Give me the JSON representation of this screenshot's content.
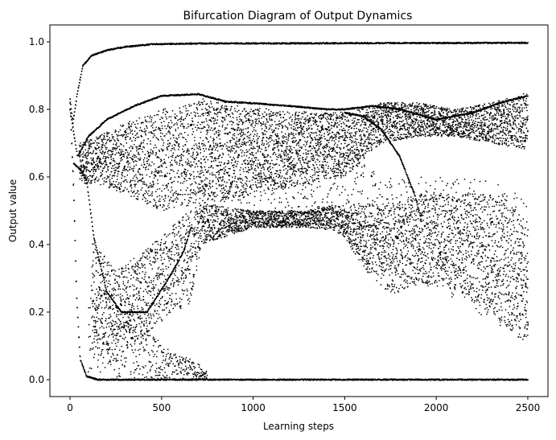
{
  "chart_data": {
    "type": "scatter",
    "title": "Bifurcation Diagram of Output Dynamics",
    "xlabel": "Learning steps",
    "ylabel": "Output value",
    "xlim": [
      -110,
      2610
    ],
    "ylim": [
      -0.05,
      1.05
    ],
    "xticks": [
      0,
      500,
      1000,
      1500,
      2000,
      2500
    ],
    "yticks": [
      0.0,
      0.2,
      0.4,
      0.6,
      0.8,
      1.0
    ],
    "xtick_labels": [
      "0",
      "500",
      "1000",
      "1500",
      "2000",
      "2500"
    ],
    "ytick_labels": [
      "0.0",
      "0.2",
      "0.4",
      "0.6",
      "0.8",
      "1.0"
    ],
    "grid": false,
    "color": "#000000",
    "x_step": 3,
    "branches": [
      {
        "kind": "line",
        "points": [
          [
            0,
            0.83
          ],
          [
            15,
            0.76
          ],
          [
            40,
            0.85
          ],
          [
            70,
            0.93
          ],
          [
            120,
            0.96
          ],
          [
            200,
            0.975
          ],
          [
            300,
            0.985
          ],
          [
            450,
            0.993
          ],
          [
            700,
            0.995
          ],
          [
            2500,
            0.997
          ]
        ]
      },
      {
        "kind": "line",
        "points": [
          [
            0,
            0.82
          ],
          [
            20,
            0.55
          ],
          [
            35,
            0.25
          ],
          [
            55,
            0.06
          ],
          [
            90,
            0.01
          ],
          [
            150,
            0.0
          ],
          [
            2500,
            0.0
          ]
        ]
      },
      {
        "kind": "line",
        "points": [
          [
            0,
            0.8
          ],
          [
            40,
            0.66
          ],
          [
            100,
            0.72
          ],
          [
            200,
            0.77
          ],
          [
            350,
            0.81
          ],
          [
            500,
            0.84
          ],
          [
            700,
            0.845
          ],
          [
            850,
            0.823
          ],
          [
            1000,
            0.818
          ],
          [
            1200,
            0.81
          ],
          [
            1400,
            0.8
          ],
          [
            1500,
            0.8
          ],
          [
            1650,
            0.81
          ],
          [
            1800,
            0.8
          ],
          [
            2000,
            0.77
          ],
          [
            2200,
            0.79
          ],
          [
            2350,
            0.82
          ],
          [
            2500,
            0.84
          ]
        ]
      },
      {
        "kind": "line",
        "points": [
          [
            20,
            0.64
          ],
          [
            60,
            0.62
          ],
          [
            90,
            0.59
          ],
          [
            130,
            0.42
          ],
          [
            200,
            0.26
          ],
          [
            280,
            0.2
          ],
          [
            350,
            0.2
          ],
          [
            420,
            0.2
          ],
          [
            480,
            0.25
          ],
          [
            560,
            0.32
          ],
          [
            620,
            0.38
          ],
          [
            660,
            0.45
          ]
        ]
      },
      {
        "kind": "line",
        "points": [
          [
            1500,
            0.79
          ],
          [
            1600,
            0.78
          ],
          [
            1700,
            0.74
          ],
          [
            1800,
            0.66
          ],
          [
            1880,
            0.55
          ],
          [
            1920,
            0.47
          ]
        ]
      },
      {
        "kind": "band",
        "points": [
          [
            50,
            0.58,
            0.7
          ],
          [
            150,
            0.58,
            0.72
          ],
          [
            300,
            0.55,
            0.76
          ],
          [
            500,
            0.5,
            0.8
          ],
          [
            700,
            0.52,
            0.82
          ],
          [
            1000,
            0.55,
            0.8
          ],
          [
            1300,
            0.58,
            0.79
          ],
          [
            1500,
            0.6,
            0.79
          ],
          [
            1700,
            0.7,
            0.82
          ],
          [
            1900,
            0.72,
            0.82
          ],
          [
            2100,
            0.72,
            0.8
          ],
          [
            2300,
            0.7,
            0.82
          ],
          [
            2500,
            0.68,
            0.85
          ]
        ],
        "density": 6
      },
      {
        "kind": "band",
        "points": [
          [
            120,
            0.1,
            0.42
          ],
          [
            250,
            0.07,
            0.32
          ],
          [
            400,
            0.12,
            0.38
          ],
          [
            550,
            0.2,
            0.45
          ],
          [
            650,
            0.22,
            0.5
          ],
          [
            720,
            0.4,
            0.52
          ],
          [
            1000,
            0.45,
            0.5
          ],
          [
            1300,
            0.45,
            0.5
          ],
          [
            1450,
            0.44,
            0.52
          ],
          [
            1500,
            0.42,
            0.5
          ],
          [
            1600,
            0.33,
            0.52
          ],
          [
            1750,
            0.25,
            0.52
          ],
          [
            1900,
            0.28,
            0.55
          ],
          [
            2100,
            0.27,
            0.55
          ],
          [
            2300,
            0.2,
            0.55
          ],
          [
            2450,
            0.12,
            0.5
          ],
          [
            2500,
            0.1,
            0.45
          ]
        ],
        "density": 5
      },
      {
        "kind": "band",
        "points": [
          [
            700,
            0.5,
            0.85
          ],
          [
            900,
            0.48,
            0.82
          ],
          [
            1200,
            0.5,
            0.8
          ],
          [
            1450,
            0.5,
            0.8
          ],
          [
            1500,
            0.5,
            0.8
          ]
        ],
        "density": 2
      },
      {
        "kind": "band",
        "points": [
          [
            1500,
            0.4,
            0.7
          ],
          [
            1700,
            0.3,
            0.6
          ],
          [
            1900,
            0.3,
            0.6
          ],
          [
            2200,
            0.2,
            0.6
          ],
          [
            2500,
            0.12,
            0.55
          ]
        ],
        "density": 2
      },
      {
        "kind": "band",
        "points": [
          [
            100,
            0.02,
            0.3
          ],
          [
            300,
            0.0,
            0.25
          ],
          [
            500,
            0.0,
            0.1
          ],
          [
            700,
            0.0,
            0.05
          ],
          [
            750,
            0.0,
            0.02
          ]
        ],
        "density": 2
      }
    ]
  }
}
